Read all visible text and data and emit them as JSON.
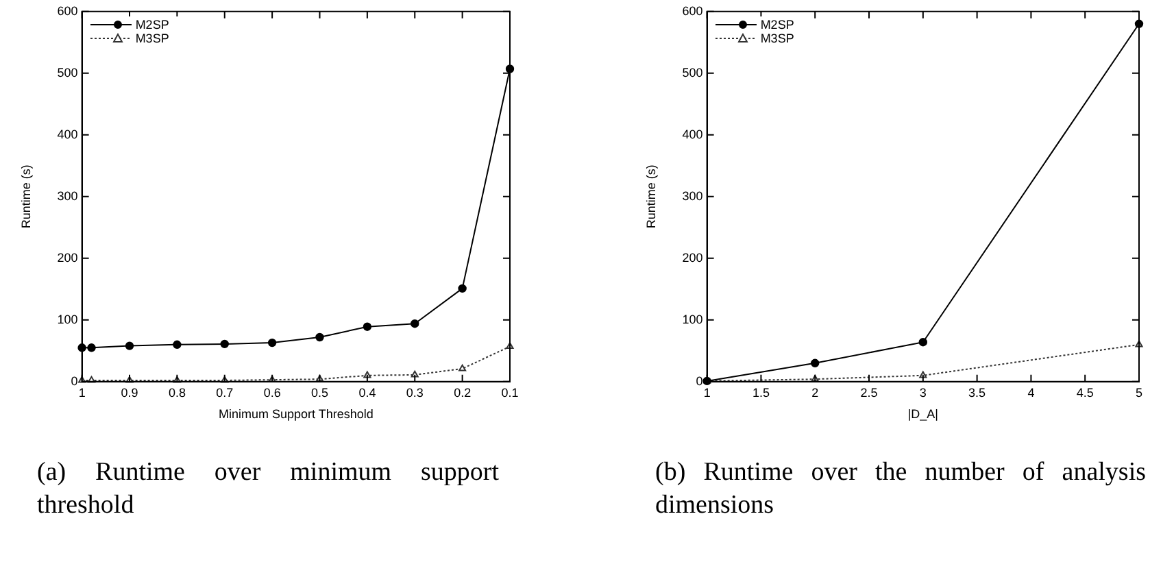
{
  "chart_data": [
    {
      "type": "line",
      "xlabel": "Minimum Support Threshold",
      "ylabel": "Runtime (s)",
      "x": [
        1,
        0.98,
        0.9,
        0.8,
        0.7,
        0.6,
        0.5,
        0.4,
        0.3,
        0.2,
        0.1
      ],
      "series": [
        {
          "name": "M2SP",
          "color": "#000000",
          "marker": "circle",
          "line_style": "solid",
          "values": [
            55,
            55,
            58,
            60,
            61,
            63,
            72,
            89,
            94,
            151,
            507
          ]
        },
        {
          "name": "M3SP",
          "color": "#333333",
          "marker": "triangle",
          "line_style": "dotted",
          "values": [
            2,
            2,
            2,
            2,
            2,
            3,
            4,
            10,
            11,
            21,
            57
          ]
        }
      ],
      "xlim": [
        1,
        0.1
      ],
      "xticks": [
        1,
        0.9,
        0.8,
        0.7,
        0.6,
        0.5,
        0.4,
        0.3,
        0.2,
        0.1
      ],
      "ylim": [
        0,
        600
      ],
      "yticks": [
        0,
        100,
        200,
        300,
        400,
        500,
        600
      ],
      "grid": false,
      "legend": "top left",
      "annotations": [
        "(a) Runtime over minimum support threshold"
      ]
    },
    {
      "type": "line",
      "xlabel": "|D_A|",
      "ylabel": "Runtime (s)",
      "x": [
        1,
        2,
        3,
        5
      ],
      "series": [
        {
          "name": "M2SP",
          "color": "#000000",
          "marker": "circle",
          "line_style": "solid",
          "values": [
            1,
            30,
            64,
            580
          ]
        },
        {
          "name": "M3SP",
          "color": "#333333",
          "marker": "triangle",
          "line_style": "dotted",
          "values": [
            1,
            4,
            10,
            60
          ]
        }
      ],
      "xlim": [
        1,
        5
      ],
      "xticks": [
        1,
        1.5,
        2,
        2.5,
        3,
        3.5,
        4,
        4.5,
        5
      ],
      "ylim": [
        0,
        600
      ],
      "yticks": [
        0,
        100,
        200,
        300,
        400,
        500,
        600
      ],
      "grid": false,
      "legend": "top left",
      "annotations": [
        "(b) Runtime over the number of analysis dimensions"
      ]
    }
  ]
}
